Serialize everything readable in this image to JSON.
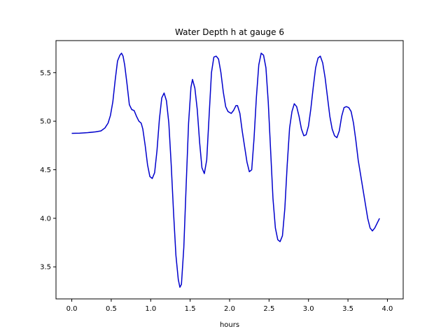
{
  "chart_data": {
    "type": "line",
    "title": "Water Depth h at gauge 6",
    "xlabel": "hours",
    "ylabel": "",
    "xlim": [
      -0.2,
      4.2
    ],
    "ylim": [
      3.17,
      5.83
    ],
    "xticks": [
      {
        "value": 0.0,
        "label": "0.0"
      },
      {
        "value": 0.5,
        "label": "0.5"
      },
      {
        "value": 1.0,
        "label": "1.0"
      },
      {
        "value": 1.5,
        "label": "1.5"
      },
      {
        "value": 2.0,
        "label": "2.0"
      },
      {
        "value": 2.5,
        "label": "2.5"
      },
      {
        "value": 3.0,
        "label": "3.0"
      },
      {
        "value": 3.5,
        "label": "3.5"
      },
      {
        "value": 4.0,
        "label": "4.0"
      }
    ],
    "yticks": [
      {
        "value": 3.5,
        "label": "3.5"
      },
      {
        "value": 4.0,
        "label": "4.0"
      },
      {
        "value": 4.5,
        "label": "4.5"
      },
      {
        "value": 5.0,
        "label": "5.0"
      },
      {
        "value": 5.5,
        "label": "5.5"
      }
    ],
    "grid": false,
    "legend": "none",
    "series": [
      {
        "color": "#0000cc",
        "points": [
          [
            0.0,
            4.875
          ],
          [
            0.1,
            4.876
          ],
          [
            0.2,
            4.882
          ],
          [
            0.3,
            4.89
          ],
          [
            0.37,
            4.9
          ],
          [
            0.42,
            4.93
          ],
          [
            0.46,
            4.98
          ],
          [
            0.49,
            5.06
          ],
          [
            0.52,
            5.2
          ],
          [
            0.55,
            5.42
          ],
          [
            0.58,
            5.62
          ],
          [
            0.61,
            5.68
          ],
          [
            0.63,
            5.7
          ],
          [
            0.65,
            5.67
          ],
          [
            0.67,
            5.58
          ],
          [
            0.7,
            5.38
          ],
          [
            0.73,
            5.17
          ],
          [
            0.76,
            5.12
          ],
          [
            0.79,
            5.11
          ],
          [
            0.82,
            5.05
          ],
          [
            0.85,
            5.0
          ],
          [
            0.88,
            4.98
          ],
          [
            0.9,
            4.92
          ],
          [
            0.93,
            4.75
          ],
          [
            0.96,
            4.55
          ],
          [
            0.99,
            4.43
          ],
          [
            1.02,
            4.41
          ],
          [
            1.05,
            4.47
          ],
          [
            1.08,
            4.7
          ],
          [
            1.11,
            5.02
          ],
          [
            1.14,
            5.24
          ],
          [
            1.17,
            5.29
          ],
          [
            1.2,
            5.21
          ],
          [
            1.23,
            4.98
          ],
          [
            1.26,
            4.55
          ],
          [
            1.29,
            4.05
          ],
          [
            1.32,
            3.62
          ],
          [
            1.35,
            3.37
          ],
          [
            1.37,
            3.29
          ],
          [
            1.39,
            3.32
          ],
          [
            1.42,
            3.7
          ],
          [
            1.45,
            4.35
          ],
          [
            1.48,
            4.98
          ],
          [
            1.51,
            5.35
          ],
          [
            1.53,
            5.43
          ],
          [
            1.56,
            5.34
          ],
          [
            1.59,
            5.12
          ],
          [
            1.62,
            4.78
          ],
          [
            1.65,
            4.52
          ],
          [
            1.68,
            4.46
          ],
          [
            1.71,
            4.6
          ],
          [
            1.74,
            5.05
          ],
          [
            1.77,
            5.5
          ],
          [
            1.8,
            5.66
          ],
          [
            1.83,
            5.67
          ],
          [
            1.86,
            5.64
          ],
          [
            1.89,
            5.5
          ],
          [
            1.92,
            5.3
          ],
          [
            1.95,
            5.15
          ],
          [
            1.98,
            5.1
          ],
          [
            2.02,
            5.08
          ],
          [
            2.05,
            5.11
          ],
          [
            2.08,
            5.16
          ],
          [
            2.1,
            5.16
          ],
          [
            2.13,
            5.08
          ],
          [
            2.16,
            4.9
          ],
          [
            2.19,
            4.74
          ],
          [
            2.22,
            4.58
          ],
          [
            2.25,
            4.48
          ],
          [
            2.28,
            4.5
          ],
          [
            2.31,
            4.82
          ],
          [
            2.34,
            5.25
          ],
          [
            2.37,
            5.58
          ],
          [
            2.4,
            5.7
          ],
          [
            2.43,
            5.68
          ],
          [
            2.46,
            5.55
          ],
          [
            2.49,
            5.2
          ],
          [
            2.52,
            4.7
          ],
          [
            2.55,
            4.2
          ],
          [
            2.58,
            3.9
          ],
          [
            2.61,
            3.78
          ],
          [
            2.64,
            3.76
          ],
          [
            2.67,
            3.82
          ],
          [
            2.7,
            4.1
          ],
          [
            2.73,
            4.55
          ],
          [
            2.76,
            4.93
          ],
          [
            2.79,
            5.1
          ],
          [
            2.82,
            5.18
          ],
          [
            2.85,
            5.15
          ],
          [
            2.88,
            5.05
          ],
          [
            2.91,
            4.92
          ],
          [
            2.94,
            4.85
          ],
          [
            2.97,
            4.86
          ],
          [
            3.0,
            4.95
          ],
          [
            3.03,
            5.13
          ],
          [
            3.06,
            5.35
          ],
          [
            3.09,
            5.55
          ],
          [
            3.12,
            5.65
          ],
          [
            3.15,
            5.67
          ],
          [
            3.18,
            5.6
          ],
          [
            3.21,
            5.45
          ],
          [
            3.24,
            5.25
          ],
          [
            3.27,
            5.05
          ],
          [
            3.3,
            4.92
          ],
          [
            3.33,
            4.85
          ],
          [
            3.36,
            4.83
          ],
          [
            3.39,
            4.9
          ],
          [
            3.42,
            5.05
          ],
          [
            3.45,
            5.14
          ],
          [
            3.48,
            5.15
          ],
          [
            3.51,
            5.14
          ],
          [
            3.54,
            5.1
          ],
          [
            3.57,
            4.98
          ],
          [
            3.6,
            4.8
          ],
          [
            3.63,
            4.6
          ],
          [
            3.66,
            4.45
          ],
          [
            3.69,
            4.3
          ],
          [
            3.72,
            4.15
          ],
          [
            3.75,
            4.0
          ],
          [
            3.78,
            3.9
          ],
          [
            3.81,
            3.87
          ],
          [
            3.84,
            3.9
          ],
          [
            3.87,
            3.95
          ],
          [
            3.9,
            4.0
          ]
        ]
      }
    ]
  }
}
